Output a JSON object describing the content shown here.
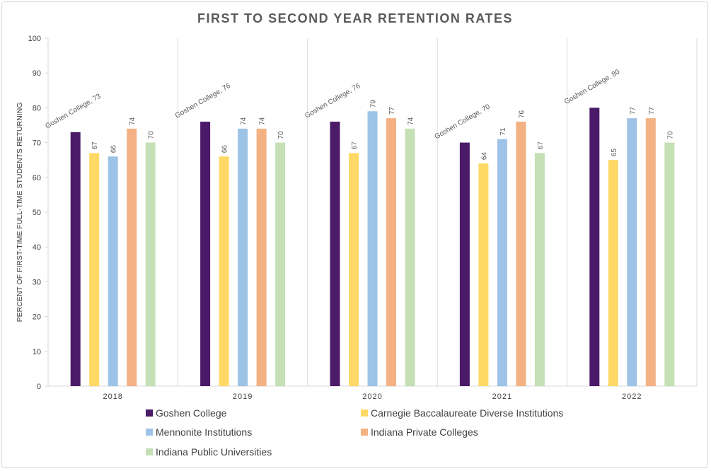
{
  "chart_data": {
    "type": "bar",
    "title": "FIRST TO SECOND YEAR RETENTION RATES",
    "xlabel": "",
    "ylabel": "PERCENT OF FIRST-TIME FULL-TIME STUDENTS RETURNING",
    "ylim": [
      0,
      100
    ],
    "yticks": [
      0,
      10,
      20,
      30,
      40,
      50,
      60,
      70,
      80,
      90,
      100
    ],
    "grid": false,
    "legend_position": "bottom",
    "categories": [
      "2018",
      "2019",
      "2020",
      "2021",
      "2022"
    ],
    "series": [
      {
        "name": "Goshen College",
        "color": "#4b1a68",
        "values": [
          73,
          76,
          76,
          70,
          80
        ],
        "label_prefix": "Goshen College, "
      },
      {
        "name": "Carnegie Baccalaureate Diverse Institutions",
        "color": "#ffd966",
        "values": [
          67,
          66,
          67,
          64,
          65
        ],
        "label_prefix": ""
      },
      {
        "name": "Mennonite Institutions",
        "color": "#9dc3e6",
        "values": [
          66,
          74,
          79,
          71,
          77
        ],
        "label_prefix": ""
      },
      {
        "name": "Indiana Private Colleges",
        "color": "#f4b183",
        "values": [
          74,
          74,
          77,
          76,
          77
        ],
        "label_prefix": ""
      },
      {
        "name": "Indiana Public Universities",
        "color": "#c5e0b4",
        "values": [
          70,
          70,
          74,
          67,
          70
        ],
        "label_prefix": ""
      }
    ]
  }
}
